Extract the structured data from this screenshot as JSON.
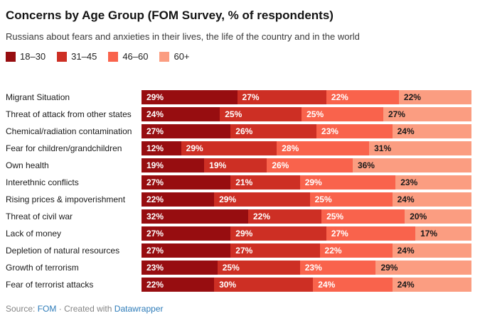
{
  "footer": {
    "source_label": "Source:",
    "source_link": "FOM",
    "separator": "·",
    "created_with": "Created with",
    "tool_link": "Datawrapper"
  },
  "chart_data": {
    "type": "bar",
    "stacked": true,
    "orientation": "horizontal",
    "normalized_to_100": true,
    "grid": false,
    "legend_position": "top",
    "unit": "%",
    "title": "Concerns by Age Group (FOM Survey, % of respondents)",
    "subtitle": "Russians about fears and anxieties in their lives, the life of the country and in the world",
    "categories": [
      "Migrant Situation",
      "Threat of attack from other states",
      "Chemical/radiation contamination",
      "Fear for children/grandchildren",
      "Own health",
      "Interethnic conflicts",
      "Rising prices & impoverishment",
      "Threat of civil war",
      "Lack of money",
      "Depletion of natural resources",
      "Growth of terrorism",
      "Fear of terrorist attacks"
    ],
    "series": [
      {
        "name": "18–30",
        "color": "#970d10",
        "label_color": "#ffffff",
        "values": [
          29,
          24,
          27,
          12,
          19,
          27,
          22,
          32,
          27,
          27,
          23,
          22
        ]
      },
      {
        "name": "31–45",
        "color": "#cd2f24",
        "label_color": "#ffffff",
        "values": [
          27,
          25,
          26,
          29,
          19,
          21,
          29,
          22,
          29,
          27,
          25,
          30
        ]
      },
      {
        "name": "46–60",
        "color": "#f9634c",
        "label_color": "#ffffff",
        "values": [
          22,
          25,
          23,
          28,
          26,
          29,
          25,
          25,
          27,
          22,
          23,
          24
        ]
      },
      {
        "name": "60+",
        "color": "#fb9d81",
        "label_color": "#1a1a1a",
        "values": [
          22,
          27,
          24,
          31,
          36,
          23,
          24,
          20,
          17,
          24,
          29,
          24
        ]
      }
    ]
  }
}
